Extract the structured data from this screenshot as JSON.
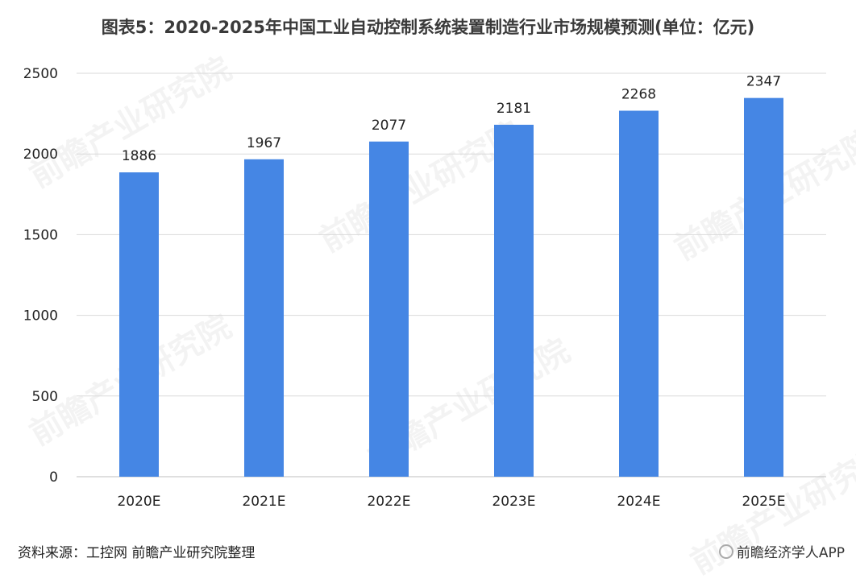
{
  "title": "图表5：2020-2025年中国工业自动控制系统装置制造行业市场规模预测(单位：亿元)",
  "source": "资料来源：工控网 前瞻产业研究院整理",
  "brand": "前瞻经济学人APP",
  "watermark": "前瞻产业研究院",
  "colors": {
    "bar": "#4586E4",
    "grid": "#d9d9d9",
    "axis": "#bfbfbf"
  },
  "chart_data": {
    "type": "bar",
    "categories": [
      "2020E",
      "2021E",
      "2022E",
      "2023E",
      "2024E",
      "2025E"
    ],
    "values": [
      1886,
      1967,
      2077,
      2181,
      2268,
      2347
    ],
    "ylim": [
      0,
      2500
    ],
    "yticks": [
      0,
      500,
      1000,
      1500,
      2000,
      2500
    ],
    "grid": true,
    "data_labels": true
  }
}
